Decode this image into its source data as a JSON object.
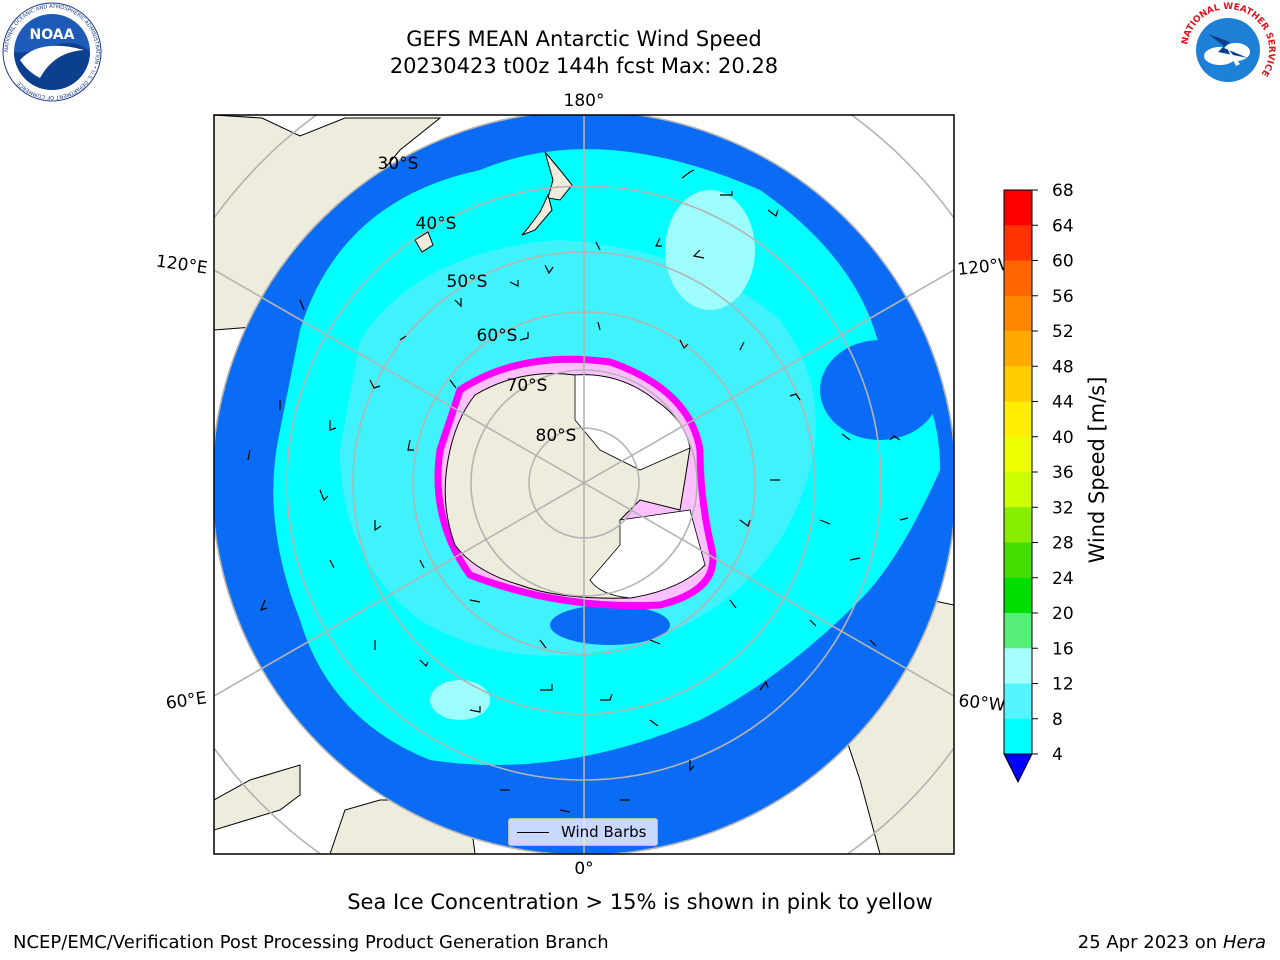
{
  "title": {
    "line1": "GEFS MEAN Antarctic Wind Speed",
    "line2": "20230423 t00z 144h fcst   Max: 20.28"
  },
  "map": {
    "projection": "south-polar-stereographic",
    "lon_labels": [
      "180°",
      "120°E",
      "120°W",
      "60°E",
      "60°W",
      "0°"
    ],
    "lat_labels": [
      "30°S",
      "40°S",
      "50°S",
      "60°S",
      "70°S",
      "80°S"
    ],
    "colors": {
      "land": "#eeecdc",
      "wind_4_8": "#0a6cf5",
      "wind_8_12": "#00ffff",
      "wind_12_16": "#3ff2fb",
      "wind_16_20": "#9efdfd",
      "sea_ice_edge": "#ff00ff",
      "sea_ice_inner": "#ffc0ff",
      "ice_shelf": "#ffffff",
      "graticule": "#b4b4b4"
    }
  },
  "legend": {
    "label": "Wind Barbs"
  },
  "colorbar": {
    "label": "Wind Speed [m/s]",
    "ticks": [
      "68",
      "64",
      "60",
      "56",
      "52",
      "48",
      "44",
      "40",
      "36",
      "32",
      "28",
      "24",
      "20",
      "16",
      "12",
      "8",
      "4"
    ],
    "colors": [
      "#ff0000",
      "#ff3300",
      "#ff6600",
      "#ff8800",
      "#ffaa00",
      "#ffcc00",
      "#ffee00",
      "#eeff00",
      "#ccff00",
      "#88ee00",
      "#44dd00",
      "#00dd00",
      "#55ee77",
      "#a8ffff",
      "#55f5ff",
      "#00ffff",
      "#0a6cf5"
    ],
    "extend_color": "#0000ff"
  },
  "notes": {
    "sea_ice": "Sea Ice Concentration > 15% is shown in pink to yellow"
  },
  "footer": {
    "left": "NCEP/EMC/Verification Post Processing Product Generation Branch",
    "date": "25 Apr 2023 on",
    "host": "Hera"
  },
  "logos": {
    "noaa_text": "NOAA",
    "noaa_ring": "NATIONAL OCEANIC AND ATMOSPHERIC ADMINISTRATION • U.S. DEPARTMENT OF COMMERCE",
    "nws_ring": "NATIONAL WEATHER SERVICE"
  }
}
